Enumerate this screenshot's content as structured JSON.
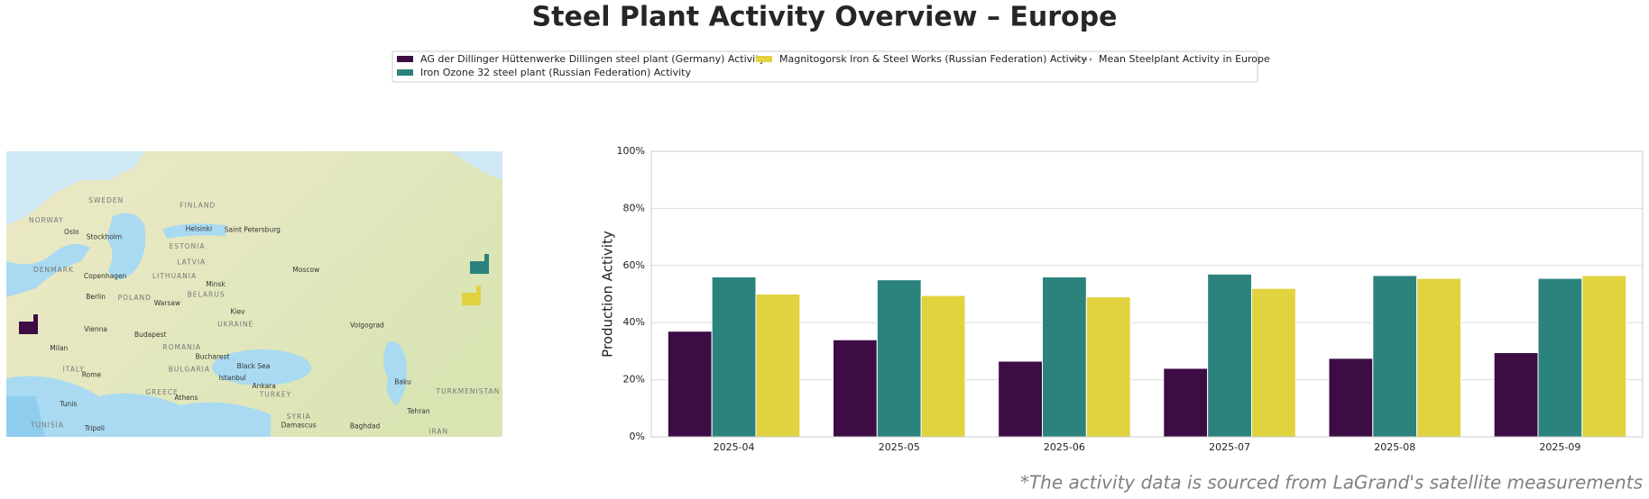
{
  "chart_data": {
    "type": "bar",
    "title": "Steel Plant Activity Overview – Europe",
    "categories": [
      "2025-04",
      "2025-05",
      "2025-06",
      "2025-07",
      "2025-08",
      "2025-09"
    ],
    "series": [
      {
        "name": "AG der Dillinger Hüttenwerke Dillingen steel plant (Germany) Activity",
        "color": "#3d0c45",
        "values": [
          37,
          34,
          26.5,
          24,
          27.5,
          29.5
        ]
      },
      {
        "name": "Iron Ozone 32 steel plant (Russian Federation) Activity",
        "color": "#2c837e",
        "values": [
          56,
          55,
          56,
          57,
          56.5,
          55.5
        ]
      },
      {
        "name": "Magnitogorsk Iron & Steel Works (Russian Federation) Activity",
        "color": "#e1d23f",
        "values": [
          50,
          49.5,
          49,
          52,
          55.5,
          56.5
        ]
      }
    ],
    "mean_line": {
      "name": "Mean Steelplant Activity in Europe",
      "color": "#808080"
    },
    "ylabel": "Production Activity",
    "ylim": [
      0,
      100
    ],
    "yticks": [
      {
        "value": 0,
        "label": "0%"
      },
      {
        "value": 20,
        "label": "20%"
      },
      {
        "value": 40,
        "label": "40%"
      },
      {
        "value": 60,
        "label": "60%"
      },
      {
        "value": 80,
        "label": "80%"
      },
      {
        "value": 100,
        "label": "100%"
      }
    ],
    "grid": true,
    "footnote": "*The activity data is sourced from LaGrand's satellite measurements"
  },
  "map_labels": [
    "SWEDEN",
    "FINLAND",
    "NORWAY",
    "Oslo",
    "Stockholm",
    "Helsinki",
    "Saint Petersburg",
    "ESTONIA",
    "LATVIA",
    "DENMARK",
    "Copenhagen",
    "LITHUANIA",
    "Minsk",
    "Moscow",
    "BELARUS",
    "Berlin",
    "POLAND",
    "Warsaw",
    "Kiev",
    "UKRAINE",
    "Vienna",
    "Budapest",
    "ROMANIA",
    "Bucharest",
    "BULGARIA",
    "ITALY",
    "Rome",
    "Milan",
    "Istanbul",
    "Ankara",
    "TURKEY",
    "GREECE",
    "Athens",
    "Volgograd",
    "Black Sea",
    "Baku",
    "Tehran",
    "TURKMENISTAN",
    "SYRIA",
    "Damascus",
    "Baghdad",
    "IRAN",
    "Tunis",
    "Tripoli",
    "TUNISIA"
  ]
}
